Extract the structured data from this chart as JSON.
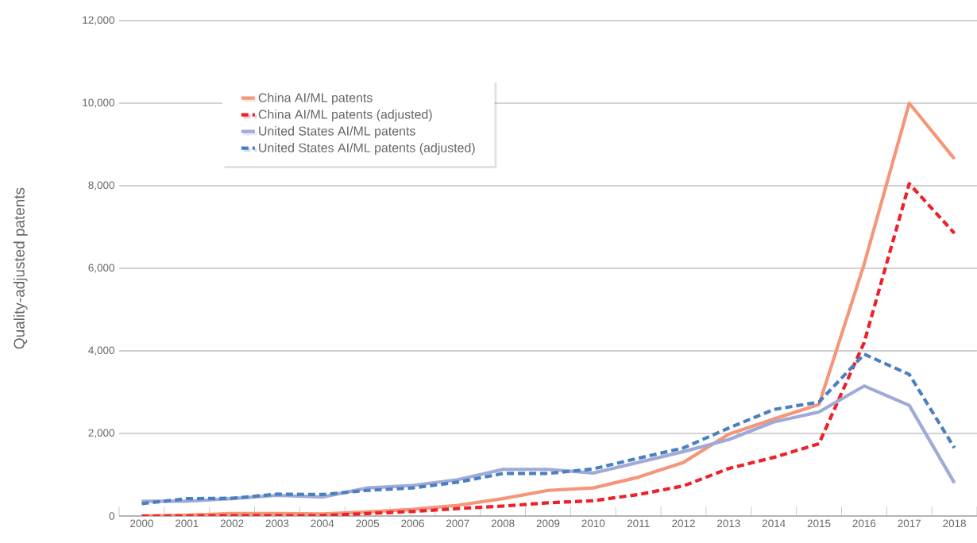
{
  "chart_data": {
    "type": "line",
    "ylabel": "Quality-adjusted patents",
    "categories": [
      "2000",
      "2001",
      "2002",
      "2003",
      "2004",
      "2005",
      "2006",
      "2007",
      "2008",
      "2009",
      "2010",
      "2011",
      "2012",
      "2013",
      "2014",
      "2015",
      "2016",
      "2017",
      "2018"
    ],
    "series": [
      {
        "name": "China AI/ML patents",
        "color": "#f4967a",
        "line_style": "solid",
        "values": [
          0,
          20,
          60,
          60,
          50,
          100,
          160,
          260,
          420,
          620,
          680,
          940,
          1300,
          1980,
          2350,
          2700,
          6100,
          10000,
          8650
        ]
      },
      {
        "name": "China AI/ML patents (adjusted)",
        "color": "#ee2028",
        "line_style": "dashed",
        "values": [
          0,
          0,
          10,
          10,
          10,
          60,
          110,
          180,
          240,
          320,
          370,
          520,
          730,
          1150,
          1420,
          1750,
          4200,
          8050,
          6850
        ]
      },
      {
        "name": "United States AI/ML patents",
        "color": "#9faad8",
        "line_style": "solid",
        "values": [
          360,
          360,
          420,
          500,
          460,
          680,
          740,
          880,
          1130,
          1130,
          1040,
          1300,
          1560,
          1850,
          2280,
          2520,
          3150,
          2680,
          800
        ]
      },
      {
        "name": "United States AI/ML patents (adjusted)",
        "color": "#4a80c0",
        "line_style": "dashed",
        "values": [
          300,
          420,
          430,
          530,
          520,
          620,
          680,
          820,
          1030,
          1030,
          1140,
          1400,
          1650,
          2130,
          2580,
          2760,
          3920,
          3430,
          1650
        ]
      }
    ],
    "ylim": [
      0,
      12000
    ],
    "yticks": [
      {
        "value": 0,
        "label": "0"
      },
      {
        "value": 2000,
        "label": "2,000"
      },
      {
        "value": 4000,
        "label": "4,000"
      },
      {
        "value": 6000,
        "label": "6,000"
      },
      {
        "value": 8000,
        "label": "8,000"
      },
      {
        "value": 10000,
        "label": "10,000"
      },
      {
        "value": 12000,
        "label": "12,000"
      }
    ],
    "grid": "y",
    "legend": "top left",
    "marker": "none"
  }
}
